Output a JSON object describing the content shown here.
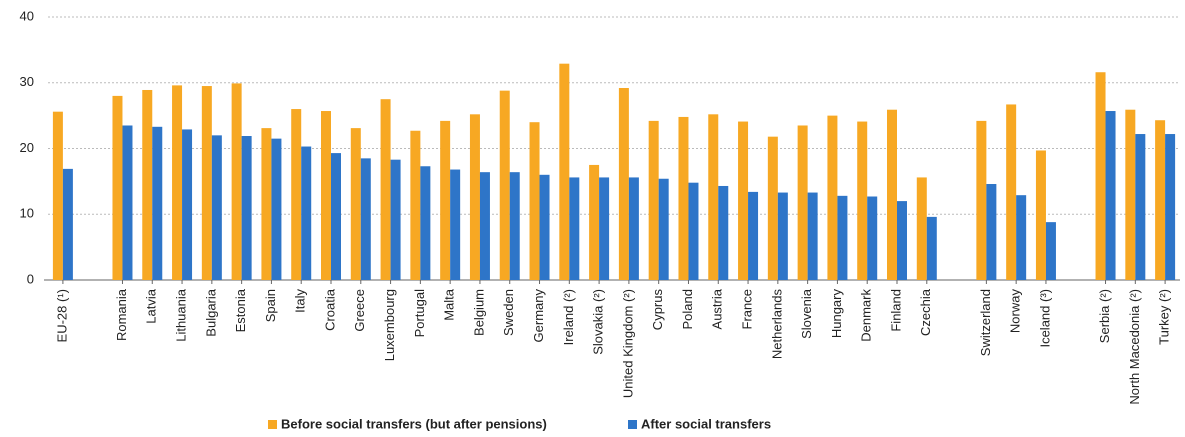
{
  "chart_data": {
    "type": "bar",
    "categories": [
      "EU-28 (¹)",
      null,
      "Romania",
      "Latvia",
      "Lithuania",
      "Bulgaria",
      "Estonia",
      "Spain",
      "Italy",
      "Croatia",
      "Greece",
      "Luxembourg",
      "Portugal",
      "Malta",
      "Belgium",
      "Sweden",
      "Germany",
      "Ireland (²)",
      "Slovakia (²)",
      "United Kingdom (²)",
      "Cyprus",
      "Poland",
      "Austria",
      "France",
      "Netherlands",
      "Slovenia",
      "Hungary",
      "Denmark",
      "Finland",
      "Czechia",
      null,
      "Switzerland",
      "Norway",
      "Iceland (³)",
      null,
      "Serbia (²)",
      "North Macedonia (²)",
      "Turkey (²)"
    ],
    "series": [
      {
        "name": "Before social transfers (but after pensions)",
        "color": "#f7a823",
        "values": [
          25.6,
          null,
          28.0,
          28.9,
          29.6,
          29.5,
          29.9,
          23.1,
          26.0,
          25.7,
          23.1,
          27.5,
          22.7,
          24.2,
          25.2,
          28.8,
          24.0,
          32.9,
          17.5,
          29.2,
          24.2,
          24.8,
          25.2,
          24.1,
          21.8,
          23.5,
          25.0,
          24.1,
          25.9,
          15.6,
          null,
          24.2,
          26.7,
          19.7,
          null,
          31.6,
          25.9,
          24.3
        ]
      },
      {
        "name": "After social transfers",
        "color": "#2e75c8",
        "values": [
          16.9,
          null,
          23.5,
          23.3,
          22.9,
          22.0,
          21.9,
          21.5,
          20.3,
          19.3,
          18.5,
          18.3,
          17.3,
          16.8,
          16.4,
          16.4,
          16.0,
          15.6,
          15.6,
          15.6,
          15.4,
          14.8,
          14.3,
          13.4,
          13.3,
          13.3,
          12.8,
          12.7,
          12.0,
          9.6,
          null,
          14.6,
          12.9,
          8.8,
          null,
          25.7,
          22.2,
          22.2
        ]
      }
    ],
    "ylim": [
      0,
      40
    ],
    "yticks": [
      0,
      10,
      20,
      30,
      40
    ],
    "grid": true
  }
}
